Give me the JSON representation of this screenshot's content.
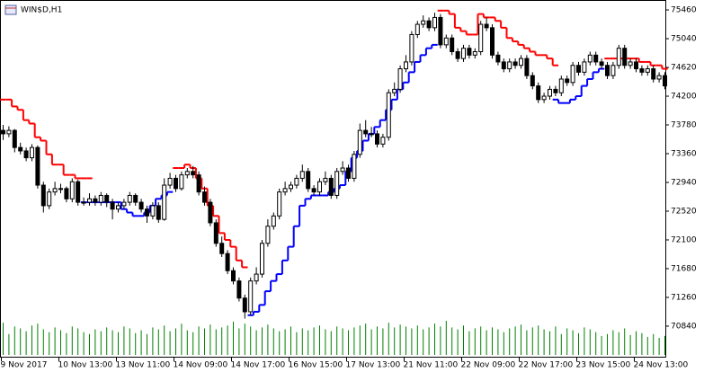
{
  "chart_data": {
    "type": "candlestick",
    "title": "WIN$D,H1",
    "categories": [
      "9 Nov 2017",
      null,
      null,
      null,
      null,
      null,
      null,
      null,
      null,
      null,
      "10 Nov 13:00",
      null,
      null,
      null,
      null,
      null,
      null,
      null,
      null,
      null,
      "13 Nov 11:00",
      null,
      null,
      null,
      null,
      null,
      null,
      null,
      null,
      null,
      "14 Nov 09:00",
      null,
      null,
      null,
      null,
      null,
      null,
      null,
      null,
      null,
      "14 Nov 17:00",
      null,
      null,
      null,
      null,
      null,
      null,
      null,
      null,
      null,
      "16 Nov 15:00",
      null,
      null,
      null,
      null,
      null,
      null,
      null,
      null,
      null,
      "17 Nov 13:00",
      null,
      null,
      null,
      null,
      null,
      null,
      null,
      null,
      null,
      "21 Nov 11:00",
      null,
      null,
      null,
      null,
      null,
      null,
      null,
      null,
      null,
      "22 Nov 09:00",
      null,
      null,
      null,
      null,
      null,
      null,
      null,
      null,
      null,
      "22 Nov 17:00",
      null,
      null,
      null,
      null,
      null,
      null,
      null,
      null,
      null,
      "23 Nov 15:00",
      null,
      null,
      null,
      null,
      null,
      null,
      null,
      null,
      null,
      "24 Nov 13:00",
      null,
      null,
      null,
      null,
      null
    ],
    "ohlc": [
      [
        73700,
        73780,
        73560,
        73650
      ],
      [
        73650,
        73760,
        73600,
        73700
      ],
      [
        73700,
        73720,
        73380,
        73450
      ],
      [
        73450,
        73520,
        73350,
        73400
      ],
      [
        73400,
        73450,
        73250,
        73300
      ],
      [
        73300,
        73500,
        73250,
        73450
      ],
      [
        73450,
        73480,
        72850,
        72900
      ],
      [
        72900,
        72950,
        72500,
        72600
      ],
      [
        72600,
        72850,
        72550,
        72800
      ],
      [
        72800,
        72950,
        72750,
        72850
      ],
      [
        72850,
        72920,
        72780,
        72850
      ],
      [
        72850,
        72880,
        72650,
        72700
      ],
      [
        72700,
        73000,
        72650,
        72950
      ],
      [
        72950,
        72980,
        72600,
        72650
      ],
      [
        72650,
        72720,
        72600,
        72650
      ],
      [
        72650,
        72780,
        72600,
        72700
      ],
      [
        72700,
        72750,
        72600,
        72650
      ],
      [
        72650,
        72800,
        72600,
        72750
      ],
      [
        72750,
        72780,
        72580,
        72650
      ],
      [
        72650,
        72700,
        72400,
        72550
      ],
      [
        72550,
        72650,
        72500,
        72600
      ],
      [
        72600,
        72700,
        72550,
        72650
      ],
      [
        72650,
        72800,
        72600,
        72750
      ],
      [
        72750,
        72780,
        72600,
        72650
      ],
      [
        72650,
        72700,
        72500,
        72550
      ],
      [
        72550,
        72600,
        72350,
        72450
      ],
      [
        72450,
        72650,
        72400,
        72600
      ],
      [
        72600,
        72650,
        72350,
        72400
      ],
      [
        72400,
        73000,
        72380,
        72900
      ],
      [
        72900,
        73080,
        72850,
        73000
      ],
      [
        73000,
        73050,
        72800,
        72850
      ],
      [
        72850,
        73100,
        72820,
        73050
      ],
      [
        73050,
        73150,
        73000,
        73100
      ],
      [
        73100,
        73180,
        73000,
        73050
      ],
      [
        73050,
        73100,
        72750,
        72800
      ],
      [
        72800,
        72880,
        72600,
        72650
      ],
      [
        72650,
        72700,
        72300,
        72350
      ],
      [
        72350,
        72400,
        72000,
        72050
      ],
      [
        72050,
        72150,
        71850,
        71900
      ],
      [
        71900,
        71950,
        71600,
        71650
      ],
      [
        71650,
        71700,
        71450,
        71500
      ],
      [
        71500,
        71550,
        71200,
        71250
      ],
      [
        71250,
        71300,
        70950,
        71050
      ],
      [
        71050,
        71550,
        71000,
        71500
      ],
      [
        71500,
        71700,
        71450,
        71600
      ],
      [
        71600,
        72100,
        71550,
        72050
      ],
      [
        72050,
        72400,
        72000,
        72300
      ],
      [
        72300,
        72500,
        72250,
        72450
      ],
      [
        72450,
        72850,
        72400,
        72800
      ],
      [
        72800,
        72950,
        72750,
        72850
      ],
      [
        72850,
        72950,
        72800,
        72900
      ],
      [
        72900,
        73050,
        72850,
        73000
      ],
      [
        73000,
        73200,
        72950,
        73100
      ],
      [
        73100,
        73150,
        72800,
        72850
      ],
      [
        72850,
        72900,
        72750,
        72800
      ],
      [
        72800,
        73000,
        72750,
        72950
      ],
      [
        72950,
        73100,
        72900,
        73000
      ],
      [
        73000,
        73050,
        72700,
        72750
      ],
      [
        72750,
        73150,
        72700,
        73100
      ],
      [
        73100,
        73250,
        73050,
        73150
      ],
      [
        73150,
        73200,
        72950,
        73000
      ],
      [
        73000,
        73400,
        72950,
        73350
      ],
      [
        73350,
        73800,
        73300,
        73700
      ],
      [
        73700,
        73850,
        73600,
        73650
      ],
      [
        73650,
        73750,
        73600,
        73650
      ],
      [
        73650,
        73700,
        73450,
        73500
      ],
      [
        73500,
        73650,
        73450,
        73600
      ],
      [
        73600,
        74300,
        73550,
        74250
      ],
      [
        74250,
        74400,
        74200,
        74300
      ],
      [
        74300,
        74650,
        74250,
        74600
      ],
      [
        74600,
        74800,
        74550,
        74700
      ],
      [
        74700,
        75150,
        74650,
        75100
      ],
      [
        75100,
        75300,
        75050,
        75250
      ],
      [
        75250,
        75380,
        75200,
        75300
      ],
      [
        75300,
        75350,
        75150,
        75200
      ],
      [
        75200,
        75420,
        75150,
        75350
      ],
      [
        75350,
        75400,
        74900,
        74950
      ],
      [
        74950,
        75100,
        74900,
        75050
      ],
      [
        75050,
        75100,
        74800,
        74850
      ],
      [
        74850,
        74900,
        74700,
        74750
      ],
      [
        74750,
        74950,
        74700,
        74900
      ],
      [
        74900,
        74950,
        74750,
        74800
      ],
      [
        74800,
        74900,
        74750,
        74850
      ],
      [
        74850,
        75300,
        74800,
        75250
      ],
      [
        75250,
        75350,
        75150,
        75200
      ],
      [
        75200,
        75250,
        74750,
        74800
      ],
      [
        74800,
        74850,
        74650,
        74700
      ],
      [
        74700,
        74750,
        74550,
        74600
      ],
      [
        74600,
        74750,
        74550,
        74700
      ],
      [
        74700,
        74750,
        74600,
        74650
      ],
      [
        74650,
        74800,
        74600,
        74750
      ],
      [
        74750,
        74800,
        74450,
        74500
      ],
      [
        74500,
        74550,
        74300,
        74350
      ],
      [
        74350,
        74400,
        74100,
        74150
      ],
      [
        74150,
        74250,
        74100,
        74200
      ],
      [
        74200,
        74350,
        74150,
        74300
      ],
      [
        74300,
        74350,
        74200,
        74250
      ],
      [
        74250,
        74500,
        74200,
        74450
      ],
      [
        74450,
        74500,
        74350,
        74400
      ],
      [
        74400,
        74700,
        74350,
        74650
      ],
      [
        74650,
        74700,
        74500,
        74550
      ],
      [
        74550,
        74750,
        74500,
        74700
      ],
      [
        74700,
        74850,
        74650,
        74800
      ],
      [
        74800,
        74850,
        74650,
        74700
      ],
      [
        74700,
        74750,
        74600,
        74650
      ],
      [
        74650,
        74700,
        74450,
        74500
      ],
      [
        74500,
        74700,
        74450,
        74650
      ],
      [
        74650,
        74950,
        74600,
        74900
      ],
      [
        74900,
        74950,
        74600,
        74650
      ],
      [
        74650,
        74750,
        74600,
        74700
      ],
      [
        74700,
        74750,
        74550,
        74600
      ],
      [
        74600,
        74650,
        74500,
        74550
      ],
      [
        74550,
        74650,
        74500,
        74600
      ],
      [
        74600,
        74650,
        74400,
        74450
      ],
      [
        74450,
        74550,
        74400,
        74500
      ],
      [
        74500,
        74550,
        74300,
        74350
      ]
    ],
    "up_color": "#ffffff",
    "down_color": "#000000",
    "series": [
      {
        "color": "#ff0000",
        "values": [
          74150,
          74150,
          74050,
          74000,
          73850,
          73800,
          73600,
          73550,
          73350,
          73200,
          73200,
          73050,
          73050,
          73000,
          73000,
          73000,
          null,
          null,
          null,
          null,
          null,
          null,
          null,
          null,
          null,
          null,
          null,
          null,
          null,
          null,
          73150,
          73150,
          73200,
          73150,
          73000,
          72850,
          72600,
          72450,
          72200,
          72100,
          72000,
          71800,
          71700,
          null,
          null,
          null,
          null,
          null,
          null,
          null,
          null,
          null,
          null,
          null,
          null,
          null,
          null,
          null,
          null,
          null,
          null,
          null,
          null,
          null,
          null,
          null,
          null,
          null,
          null,
          null,
          null,
          null,
          null,
          null,
          null,
          null,
          75450,
          75450,
          75400,
          75200,
          75150,
          75100,
          75100,
          75400,
          75350,
          75350,
          75300,
          75200,
          75050,
          75000,
          74950,
          74900,
          74850,
          74800,
          74800,
          74750,
          74650,
          null,
          null,
          null,
          null,
          null,
          null,
          null,
          null,
          74750,
          74750,
          74750,
          74750,
          74750,
          74750,
          74700,
          74700,
          74650,
          74650,
          74600
        ]
      },
      {
        "color": "#0000ff",
        "values": [
          null,
          null,
          null,
          null,
          null,
          null,
          null,
          null,
          null,
          null,
          null,
          null,
          null,
          null,
          72650,
          72650,
          72650,
          72650,
          72650,
          72650,
          72650,
          72550,
          72500,
          72450,
          72450,
          72500,
          72600,
          72700,
          72750,
          72800,
          null,
          null,
          null,
          null,
          null,
          null,
          null,
          null,
          null,
          null,
          null,
          null,
          null,
          71000,
          71050,
          71150,
          71350,
          71500,
          71600,
          71800,
          72000,
          72300,
          72600,
          72700,
          72750,
          72750,
          72750,
          72800,
          72850,
          72900,
          73100,
          73300,
          73400,
          73550,
          73650,
          73750,
          73850,
          74000,
          74150,
          74300,
          74400,
          74550,
          74700,
          74800,
          74900,
          74950,
          null,
          null,
          null,
          null,
          null,
          null,
          null,
          null,
          null,
          null,
          null,
          null,
          null,
          null,
          null,
          null,
          null,
          null,
          null,
          null,
          74150,
          74100,
          74100,
          74150,
          74200,
          74350,
          74450,
          74550,
          74600,
          null,
          null,
          null,
          null,
          null,
          null,
          null,
          null,
          null,
          null,
          null
        ]
      }
    ],
    "volume": [
      34,
      22,
      30,
      28,
      25,
      31,
      33,
      27,
      24,
      29,
      26,
      23,
      30,
      28,
      24,
      22,
      27,
      25,
      29,
      26,
      24,
      30,
      28,
      23,
      26,
      22,
      29,
      27,
      31,
      25,
      28,
      33,
      26,
      24,
      30,
      28,
      32,
      27,
      29,
      31,
      35,
      28,
      33,
      30,
      26,
      29,
      32,
      28,
      25,
      27,
      30,
      24,
      28,
      26,
      29,
      31,
      27,
      25,
      30,
      28,
      26,
      29,
      31,
      33,
      27,
      30,
      28,
      34,
      29,
      32,
      30,
      28,
      31,
      27,
      29,
      33,
      30,
      36,
      29,
      27,
      31,
      25,
      28,
      30,
      26,
      29,
      27,
      24,
      28,
      30,
      32,
      26,
      29,
      31,
      27,
      25,
      30,
      22,
      28,
      26,
      23,
      29,
      27,
      24,
      20,
      22,
      26,
      24,
      28,
      21,
      25,
      23,
      19,
      22,
      18,
      20
    ],
    "volume_color": "#008000",
    "ylim": [
      70380,
      75605
    ],
    "yticks": [
      75460,
      75040,
      74620,
      74200,
      73780,
      73360,
      72940,
      72520,
      72100,
      71680,
      71260,
      70840
    ]
  }
}
